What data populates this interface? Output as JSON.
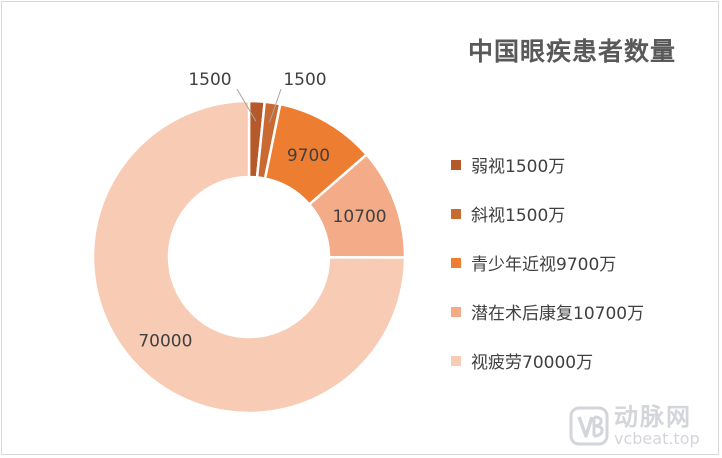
{
  "chart_data": {
    "type": "pie",
    "title": "中国眼疾患者数量",
    "donut": true,
    "categories": [
      "弱视1500万",
      "斜视1500万",
      "青少年近视9700万",
      "潜在术后康复10700万",
      "视疲劳70000万"
    ],
    "values": [
      1500,
      1500,
      9700,
      10700,
      70000
    ],
    "data_labels": [
      "1500",
      "1500",
      "9700",
      "10700",
      "70000"
    ],
    "colors": [
      "#b5592a",
      "#c96a33",
      "#ed7d31",
      "#f3ab88",
      "#f8cbb4"
    ],
    "legend_position": "right"
  },
  "watermark": {
    "name_cn": "动脉网",
    "domain": "vcbeat.top"
  }
}
